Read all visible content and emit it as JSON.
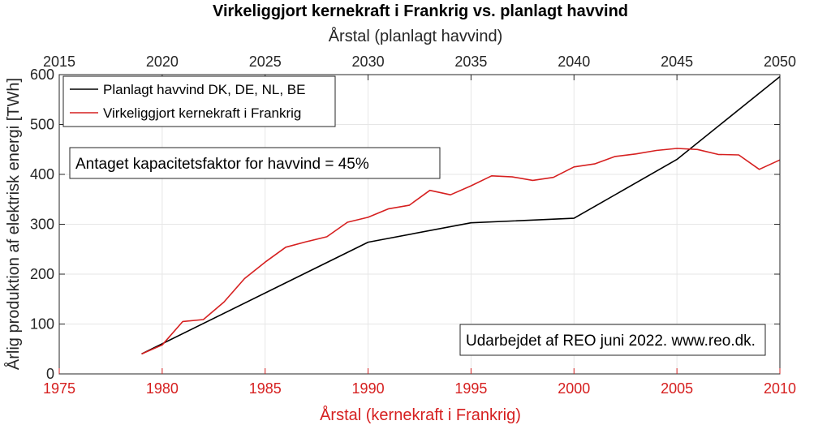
{
  "chart_data": {
    "type": "line",
    "title": "Virkeliggjort kernekraft i Frankrig vs. planlagt havvind",
    "top_xlabel": "Årstal (planlagt havvind)",
    "bottom_xlabel": "Årstal (kernekraft i Frankrig)",
    "ylabel": "Årlig produktion af elektrisk energi [TWh]",
    "top_xlim": [
      2015,
      2050
    ],
    "bottom_xlim": [
      1975,
      2010
    ],
    "ylim": [
      0,
      600
    ],
    "top_ticks": [
      "2015",
      "2020",
      "2025",
      "2030",
      "2035",
      "2040",
      "2045",
      "2050"
    ],
    "bottom_ticks": [
      "1975",
      "1980",
      "1985",
      "1990",
      "1995",
      "2000",
      "2005",
      "2010"
    ],
    "y_ticks": [
      "0",
      "100",
      "200",
      "300",
      "400",
      "500",
      "600"
    ],
    "grid": true,
    "legend_position": "top-left",
    "colors": {
      "havvind": "#000000",
      "kernekraft": "#d62020",
      "grid": "#e6e6e6",
      "axis": "#262626"
    },
    "series": [
      {
        "name": "Planlagt havvind DK, DE, NL, BE",
        "axis": "top",
        "x": [
          2019,
          2030,
          2035,
          2040,
          2045,
          2050
        ],
        "y": [
          40,
          264,
          303,
          312,
          430,
          596
        ]
      },
      {
        "name": "Virkeliggjort kernekraft i Frankrig",
        "axis": "bottom",
        "x": [
          1979,
          1980,
          1981,
          1982,
          1983,
          1984,
          1985,
          1986,
          1987,
          1988,
          1989,
          1990,
          1991,
          1992,
          1993,
          1994,
          1995,
          1996,
          1997,
          1998,
          1999,
          2000,
          2001,
          2002,
          2003,
          2004,
          2005,
          2006,
          2007,
          2008,
          2009,
          2010
        ],
        "y": [
          40,
          58,
          105,
          109,
          144,
          191,
          224,
          254,
          265,
          275,
          304,
          314,
          331,
          338,
          368,
          359,
          377,
          397,
          395,
          388,
          394,
          415,
          421,
          436,
          441,
          448,
          452,
          450,
          440,
          439,
          410,
          429
        ]
      }
    ],
    "annotations": [
      "Antaget kapacitetsfaktor for havvind = 45%",
      "Udarbejdet af REO juni 2022. www.reo.dk."
    ]
  }
}
